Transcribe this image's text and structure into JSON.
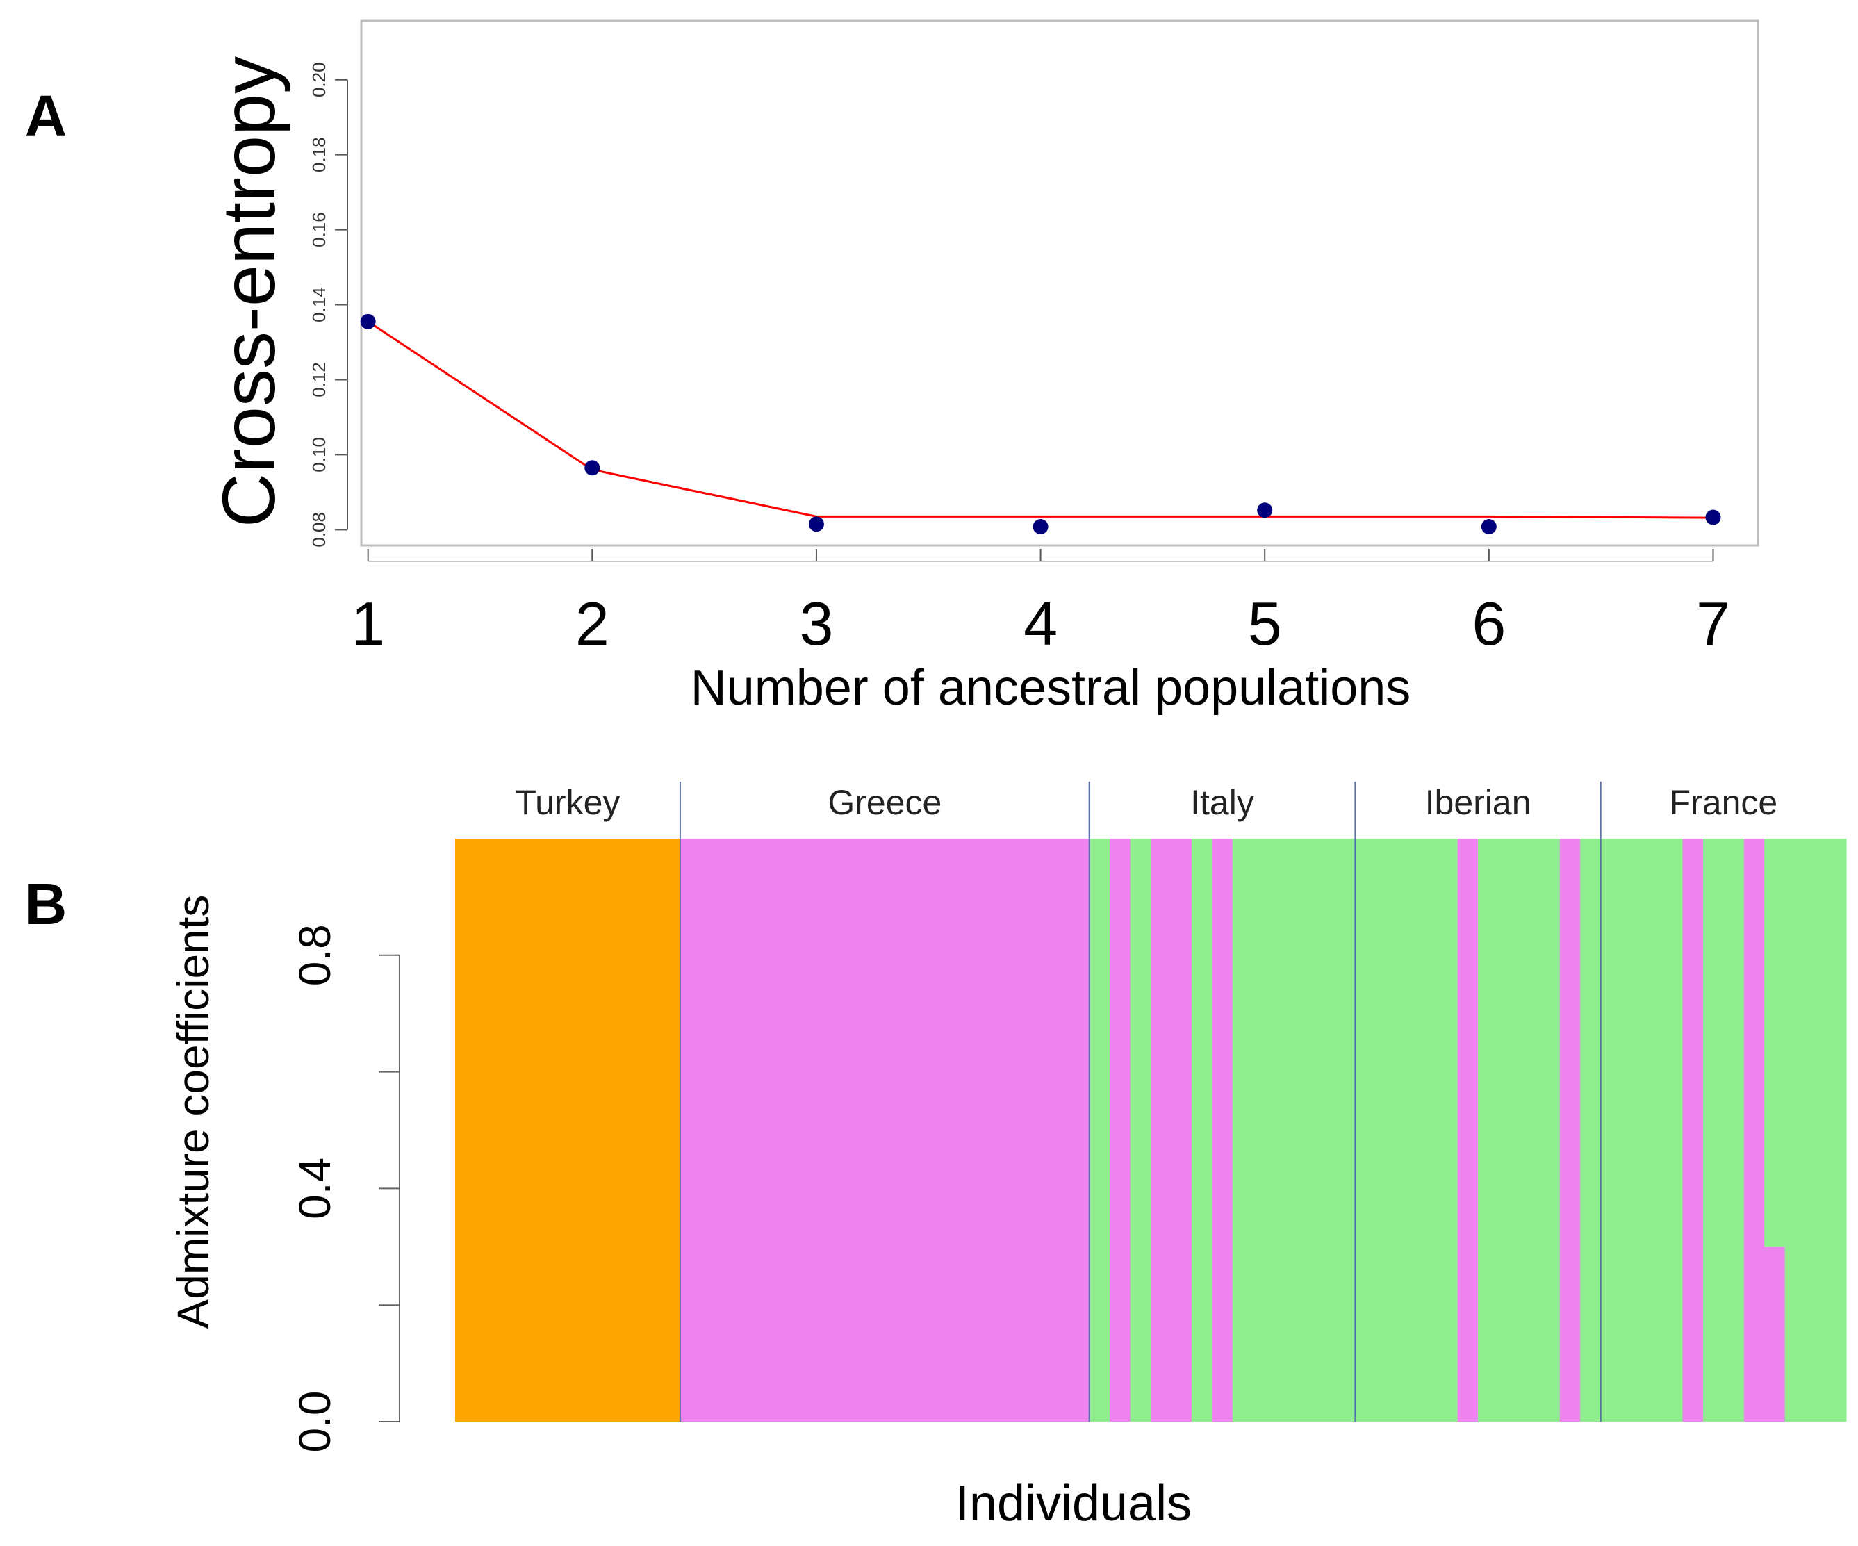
{
  "figure": {
    "panel_a_label": "A",
    "panel_b_label": "B"
  },
  "chart_data": [
    {
      "type": "line",
      "panel": "A",
      "title": "",
      "xlabel": "Number of ancestral populations",
      "ylabel": "Cross-entropy",
      "x": [
        1,
        2,
        3,
        4,
        5,
        6,
        7
      ],
      "series": [
        {
          "name": "cross-entropy points",
          "kind": "scatter",
          "color": "#00007a",
          "values": [
            0.1355,
            0.0965,
            0.0815,
            0.0808,
            0.0852,
            0.0808,
            0.0833
          ]
        },
        {
          "name": "cross-entropy line",
          "kind": "line",
          "color": "#ff0000",
          "values": [
            0.1355,
            0.096,
            0.0835,
            0.0835,
            0.0835,
            0.0835,
            0.0832
          ]
        }
      ],
      "xticks": [
        "1",
        "2",
        "3",
        "4",
        "5",
        "6",
        "7"
      ],
      "yticks": [
        "0.08",
        "0.10",
        "0.12",
        "0.14",
        "0.16",
        "0.18",
        "0.20"
      ],
      "xlim": [
        0.97,
        7.2
      ],
      "ylim": [
        0.0758,
        0.2157
      ],
      "grid": false,
      "legend": "none"
    },
    {
      "type": "bar",
      "subtype": "stacked",
      "panel": "B",
      "title": "",
      "xlabel": "Individuals",
      "ylabel": "Admixture coefficients",
      "yticks": [
        "0.0",
        "0.4",
        "0.8"
      ],
      "minor_yticks": [
        0.2,
        0.6
      ],
      "ylim": [
        0,
        1
      ],
      "ancestry_colors": [
        "#ffa500",
        "#ee82ee",
        "#90ee90"
      ],
      "groups": [
        {
          "name": "Turkey",
          "individuals": [
            [
              1,
              0,
              0
            ],
            [
              1,
              0,
              0
            ],
            [
              1,
              0,
              0
            ],
            [
              1,
              0,
              0
            ],
            [
              1,
              0,
              0
            ],
            [
              1,
              0,
              0
            ],
            [
              1,
              0,
              0
            ],
            [
              1,
              0,
              0
            ],
            [
              1,
              0,
              0
            ],
            [
              1,
              0,
              0
            ],
            [
              1,
              0,
              0
            ]
          ]
        },
        {
          "name": "Greece",
          "individuals": [
            [
              0,
              1,
              0
            ],
            [
              0,
              1,
              0
            ],
            [
              0,
              1,
              0
            ],
            [
              0,
              1,
              0
            ],
            [
              0,
              1,
              0
            ],
            [
              0,
              1,
              0
            ],
            [
              0,
              1,
              0
            ],
            [
              0,
              1,
              0
            ],
            [
              0,
              1,
              0
            ],
            [
              0,
              1,
              0
            ],
            [
              0,
              1,
              0
            ],
            [
              0,
              1,
              0
            ],
            [
              0,
              1,
              0
            ],
            [
              0,
              1,
              0
            ],
            [
              0,
              1,
              0
            ],
            [
              0,
              1,
              0
            ],
            [
              0,
              1,
              0
            ],
            [
              0,
              1,
              0
            ],
            [
              0,
              1,
              0
            ],
            [
              0,
              1,
              0
            ]
          ]
        },
        {
          "name": "Italy",
          "individuals": [
            [
              0,
              0,
              1
            ],
            [
              0,
              1,
              0
            ],
            [
              0,
              0,
              1
            ],
            [
              0,
              1,
              0
            ],
            [
              0,
              1,
              0
            ],
            [
              0,
              0,
              1
            ],
            [
              0,
              1,
              0
            ],
            [
              0,
              0,
              1
            ],
            [
              0,
              0,
              1
            ],
            [
              0,
              0,
              1
            ],
            [
              0,
              0,
              1
            ],
            [
              0,
              0,
              1
            ],
            [
              0,
              0,
              1
            ]
          ]
        },
        {
          "name": "Iberian",
          "individuals": [
            [
              0,
              0,
              1
            ],
            [
              0,
              0,
              1
            ],
            [
              0,
              0,
              1
            ],
            [
              0,
              0,
              1
            ],
            [
              0,
              0,
              1
            ],
            [
              0,
              1,
              0
            ],
            [
              0,
              0,
              1
            ],
            [
              0,
              0,
              1
            ],
            [
              0,
              0,
              1
            ],
            [
              0,
              0,
              1
            ],
            [
              0,
              1,
              0
            ],
            [
              0,
              0,
              1
            ]
          ]
        },
        {
          "name": "France",
          "individuals": [
            [
              0,
              0,
              1
            ],
            [
              0,
              0,
              1
            ],
            [
              0,
              0,
              1
            ],
            [
              0,
              0,
              1
            ],
            [
              0,
              1,
              0
            ],
            [
              0,
              0,
              1
            ],
            [
              0,
              0,
              1
            ],
            [
              0,
              1,
              0
            ],
            [
              0,
              0.3,
              0.7
            ],
            [
              0,
              0,
              1
            ],
            [
              0,
              0,
              1
            ],
            [
              0,
              0,
              1
            ]
          ]
        }
      ]
    }
  ]
}
